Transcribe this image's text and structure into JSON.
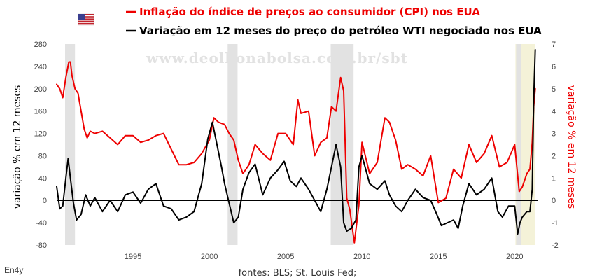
{
  "header": {
    "flag_name": "usa-flag"
  },
  "legend": {
    "cpi_label": "Inflação do índice de preços ao consumidor (CPI) nos EUA",
    "oil_label": "Variação em 12 meses do preço do petróleo WTI negociado nos EUA"
  },
  "watermark": "www.deolhonabolsa.com.br/sbt",
  "footer": {
    "source": "fontes: BLS; St. Louis Fed;",
    "brand": "En4y"
  },
  "colors": {
    "cpi": "#ee0000",
    "oil": "#000000",
    "recession": "#e2e2e2",
    "covid": "#f4f2d8",
    "zero_line": "#000000"
  },
  "chart_data": {
    "type": "line",
    "title": "",
    "xlabel": "",
    "ylabel_left": "variação % em 12 meses",
    "ylabel_right": "variação % em 12 meses",
    "x_range": [
      1990.0,
      2021.5
    ],
    "ylim_left": [
      -80,
      280
    ],
    "ylim_right": [
      -2,
      7
    ],
    "yticks_left": [
      280,
      240,
      200,
      160,
      120,
      80,
      40,
      0,
      -40,
      -80
    ],
    "yticks_right": [
      7,
      6,
      5,
      4,
      3,
      2,
      1,
      0,
      -1,
      -2
    ],
    "xticks": [
      1995,
      2000,
      2005,
      2010,
      2015,
      2020
    ],
    "zero_line": 0,
    "shaded_periods": [
      {
        "start": 1990.55,
        "end": 1991.2,
        "kind": "recession"
      },
      {
        "start": 2001.2,
        "end": 2001.85,
        "kind": "recession"
      },
      {
        "start": 2007.95,
        "end": 2009.45,
        "kind": "recession"
      },
      {
        "start": 2020.1,
        "end": 2020.4,
        "kind": "recession"
      },
      {
        "start": 2020.05,
        "end": 2021.35,
        "kind": "covid"
      }
    ],
    "series": [
      {
        "name": "Inflação do índice de preços ao consumidor (CPI) nos EUA",
        "axis": "right",
        "color": "#ee0000",
        "x": [
          1990.0,
          1990.2,
          1990.4,
          1990.6,
          1990.8,
          1990.9,
          1991.0,
          1991.2,
          1991.4,
          1991.6,
          1991.8,
          1992.0,
          1992.2,
          1992.5,
          1993.0,
          1993.5,
          1994.0,
          1994.5,
          1995.0,
          1995.5,
          1996.0,
          1996.5,
          1997.0,
          1997.5,
          1998.0,
          1998.5,
          1999.0,
          1999.5,
          2000.0,
          2000.3,
          2000.6,
          2001.0,
          2001.3,
          2001.6,
          2001.9,
          2002.2,
          2002.6,
          2003.0,
          2003.5,
          2004.0,
          2004.5,
          2005.0,
          2005.5,
          2005.8,
          2006.0,
          2006.5,
          2006.9,
          2007.3,
          2007.7,
          2008.0,
          2008.3,
          2008.6,
          2008.8,
          2009.0,
          2009.2,
          2009.5,
          2009.8,
          2010.0,
          2010.5,
          2011.0,
          2011.5,
          2011.8,
          2012.2,
          2012.6,
          2013.0,
          2013.5,
          2014.0,
          2014.5,
          2015.0,
          2015.5,
          2016.0,
          2016.5,
          2017.0,
          2017.5,
          2018.0,
          2018.5,
          2019.0,
          2019.5,
          2020.0,
          2020.3,
          2020.5,
          2020.8,
          2021.0,
          2021.15,
          2021.25,
          2021.35
        ],
        "values": [
          5.2,
          5.0,
          4.6,
          5.5,
          6.2,
          6.2,
          5.6,
          5.0,
          4.8,
          4.0,
          3.2,
          2.8,
          3.1,
          3.0,
          3.1,
          2.8,
          2.5,
          2.9,
          2.9,
          2.6,
          2.7,
          2.9,
          3.0,
          2.3,
          1.6,
          1.6,
          1.7,
          2.1,
          2.7,
          3.7,
          3.5,
          3.4,
          3.0,
          2.7,
          1.8,
          1.2,
          1.6,
          2.5,
          2.1,
          1.8,
          3.0,
          3.0,
          2.5,
          4.5,
          3.9,
          4.0,
          2.0,
          2.6,
          2.8,
          4.2,
          4.0,
          5.5,
          4.9,
          0.1,
          -0.4,
          -1.9,
          -0.2,
          2.6,
          1.2,
          1.7,
          3.7,
          3.5,
          2.7,
          1.4,
          1.6,
          1.4,
          1.1,
          2.0,
          -0.1,
          0.1,
          1.4,
          1.0,
          2.5,
          1.7,
          2.1,
          2.9,
          1.5,
          1.7,
          2.5,
          0.4,
          0.6,
          1.2,
          1.4,
          2.6,
          4.2,
          5.0
        ]
      },
      {
        "name": "Variação em 12 meses do preço do petróleo WTI negociado nos EUA",
        "axis": "left",
        "color": "#000000",
        "x": [
          1990.0,
          1990.2,
          1990.4,
          1990.6,
          1990.75,
          1990.9,
          1991.1,
          1991.3,
          1991.6,
          1991.9,
          1992.2,
          1992.5,
          1993.0,
          1993.5,
          1994.0,
          1994.5,
          1995.0,
          1995.5,
          1996.0,
          1996.5,
          1997.0,
          1997.5,
          1998.0,
          1998.5,
          1999.0,
          1999.5,
          1999.9,
          2000.2,
          2000.5,
          2000.8,
          2001.0,
          2001.3,
          2001.6,
          2001.9,
          2002.2,
          2002.6,
          2003.0,
          2003.5,
          2004.0,
          2004.5,
          2004.9,
          2005.3,
          2005.7,
          2006.0,
          2006.5,
          2006.9,
          2007.3,
          2007.7,
          2008.0,
          2008.3,
          2008.6,
          2008.8,
          2009.0,
          2009.3,
          2009.6,
          2009.8,
          2010.0,
          2010.5,
          2011.0,
          2011.5,
          2011.8,
          2012.2,
          2012.6,
          2013.0,
          2013.5,
          2014.0,
          2014.5,
          2014.9,
          2015.2,
          2015.6,
          2016.0,
          2016.3,
          2016.6,
          2017.0,
          2017.5,
          2018.0,
          2018.5,
          2018.9,
          2019.2,
          2019.6,
          2020.0,
          2020.2,
          2020.35,
          2020.5,
          2020.8,
          2021.0,
          2021.15,
          2021.25,
          2021.35
        ],
        "values": [
          25,
          -15,
          -10,
          40,
          75,
          40,
          -5,
          -35,
          -25,
          10,
          -10,
          5,
          -20,
          0,
          -20,
          10,
          15,
          -5,
          20,
          30,
          -10,
          -15,
          -35,
          -30,
          -20,
          30,
          110,
          140,
          100,
          60,
          30,
          -5,
          -40,
          -30,
          20,
          50,
          65,
          10,
          40,
          55,
          70,
          35,
          25,
          40,
          20,
          0,
          -20,
          20,
          60,
          100,
          60,
          -40,
          -55,
          -50,
          -35,
          60,
          80,
          30,
          20,
          35,
          10,
          -10,
          -20,
          0,
          20,
          5,
          0,
          -25,
          -45,
          -40,
          -35,
          -50,
          -10,
          30,
          10,
          20,
          40,
          -20,
          -30,
          -10,
          -10,
          -60,
          -40,
          -30,
          -20,
          -20,
          20,
          180,
          270
        ]
      }
    ]
  }
}
